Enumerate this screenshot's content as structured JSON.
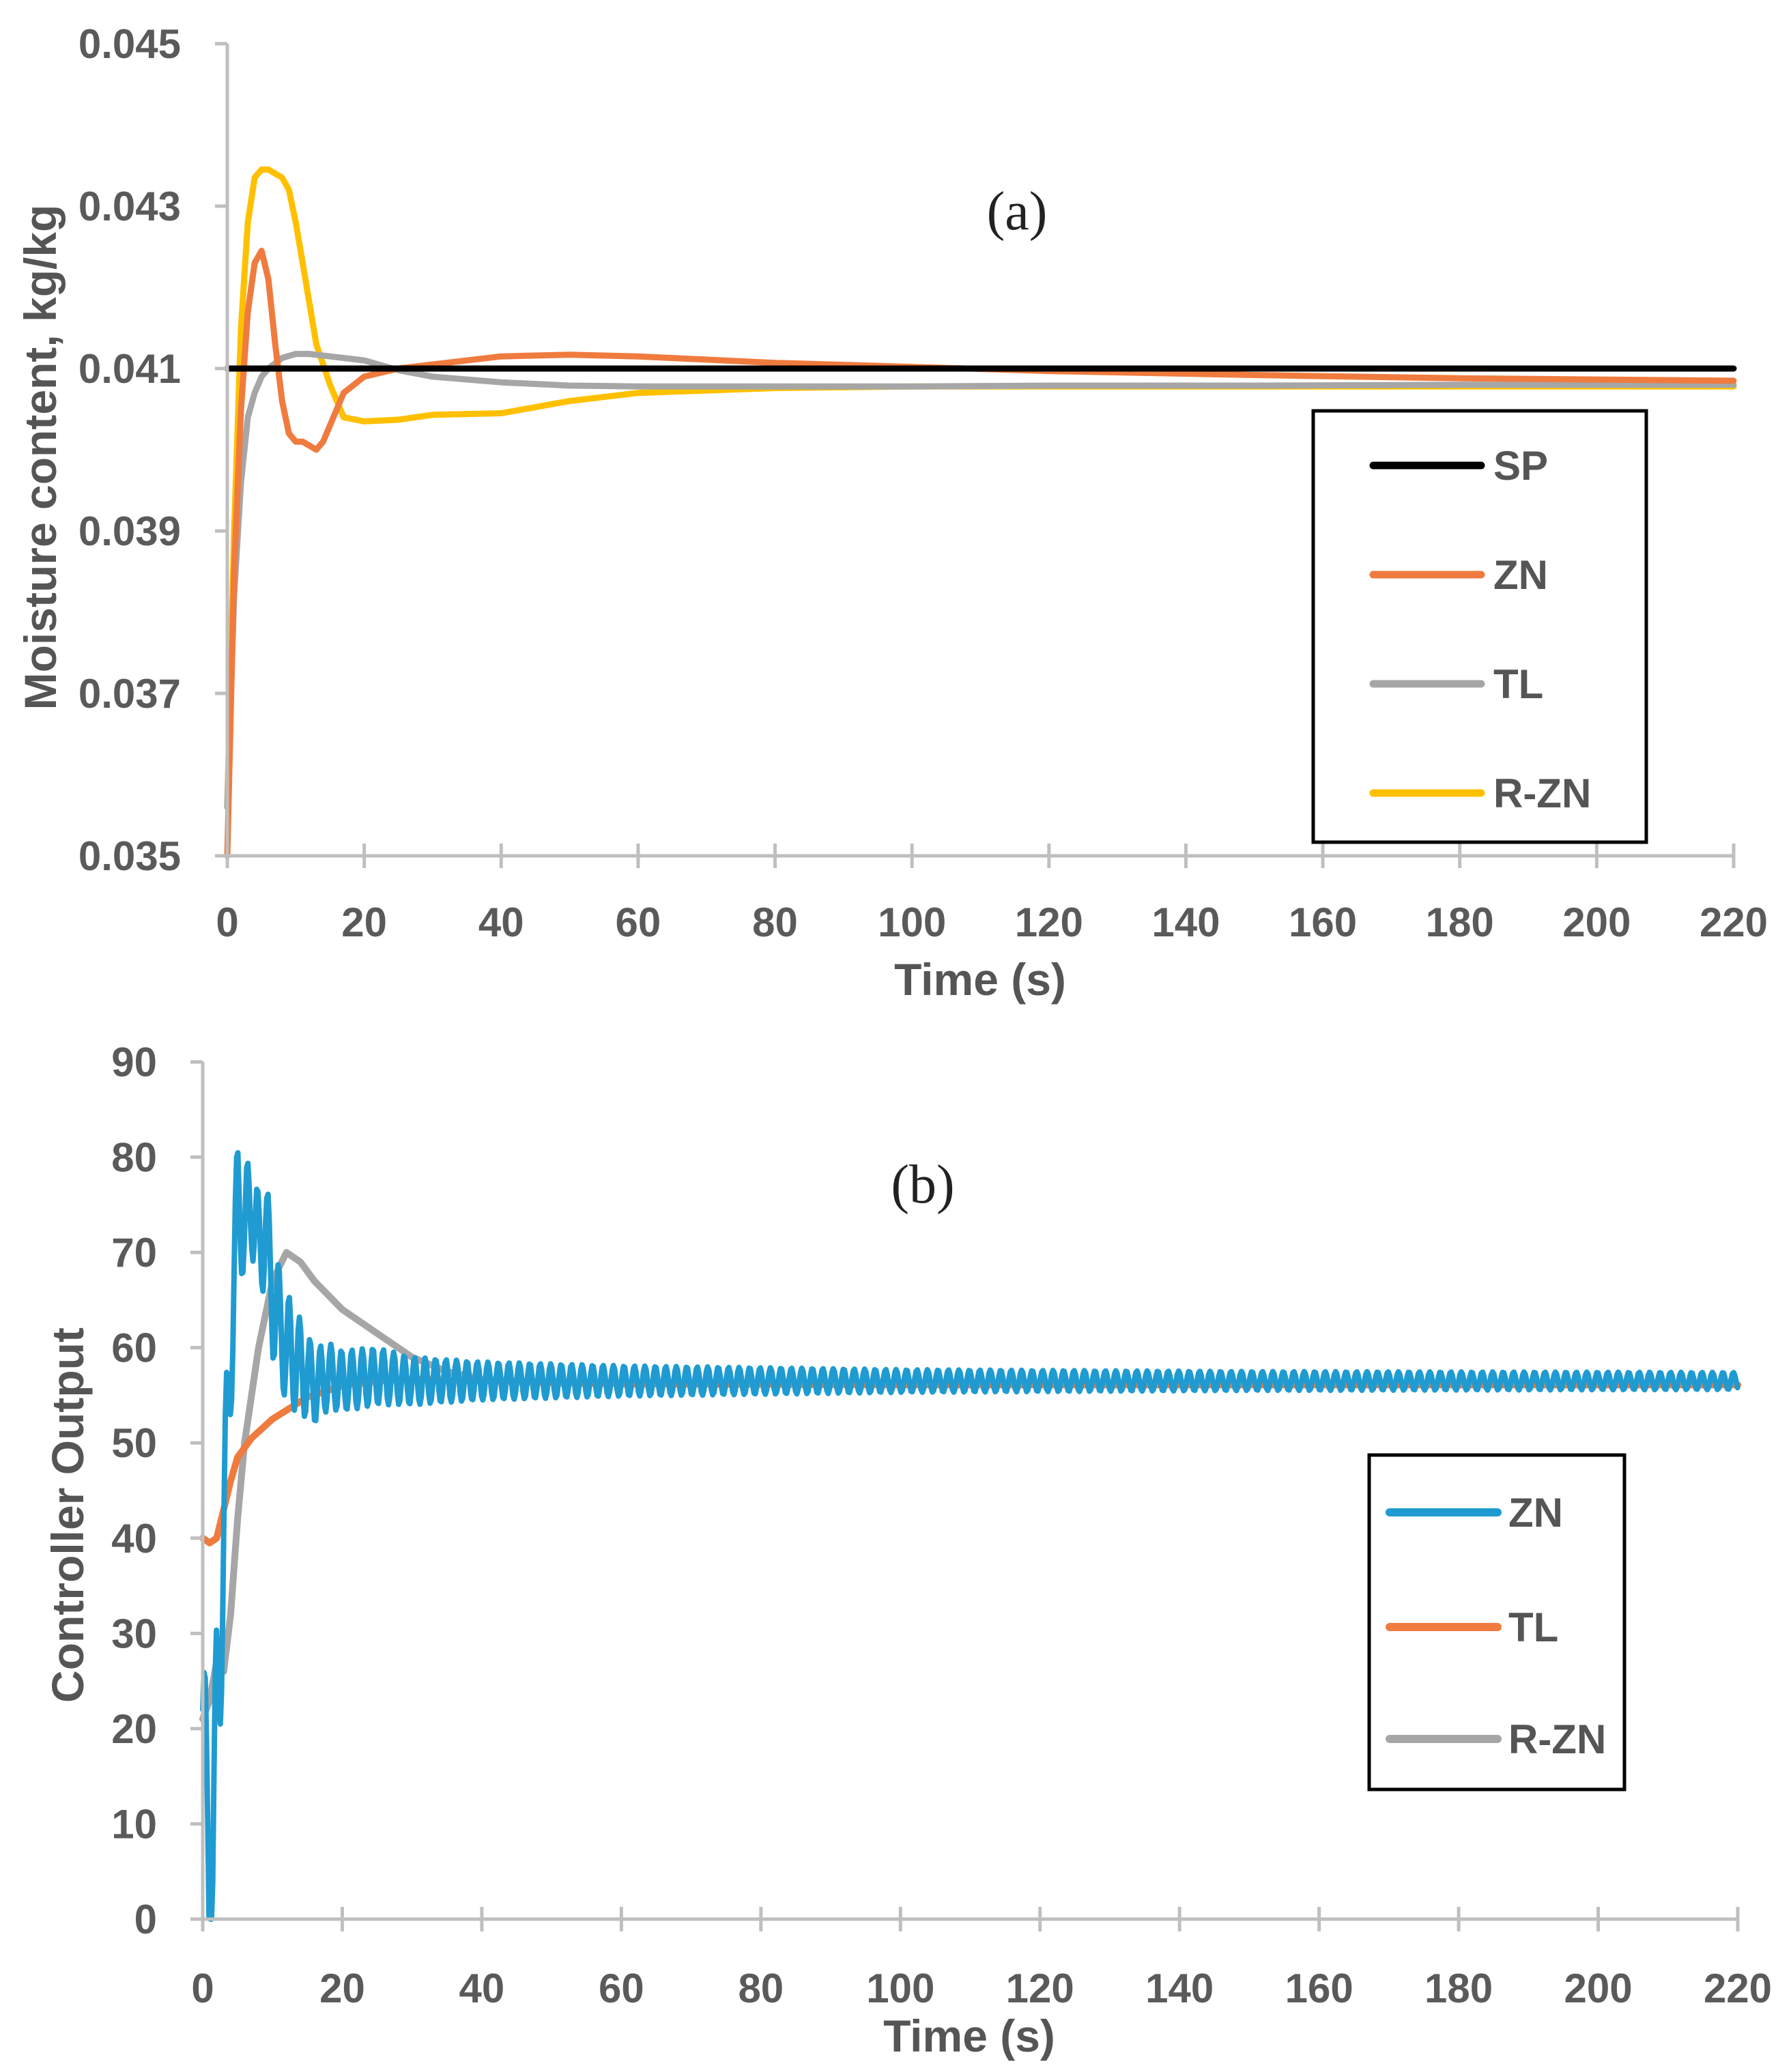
{
  "chart_data": [
    {
      "type": "line",
      "panel_label": "(a)",
      "xlabel": "Time (s)",
      "ylabel": "Moisture content, kg/kg",
      "xlim": [
        0,
        220
      ],
      "ylim": [
        0.035,
        0.045
      ],
      "xticks": [
        0,
        20,
        40,
        60,
        80,
        100,
        120,
        140,
        160,
        180,
        200,
        220
      ],
      "yticks": [
        0.035,
        0.037,
        0.039,
        0.041,
        0.043,
        0.045
      ],
      "ytick_labels": [
        "0.035",
        "0.037",
        "0.039",
        "0.041",
        "0.043",
        "0.045"
      ],
      "grid": false,
      "legend_position": "right",
      "series": [
        {
          "name": "SP",
          "color": "#000000",
          "x": [
            0,
            220
          ],
          "y": [
            0.041,
            0.041
          ]
        },
        {
          "name": "ZN",
          "color": "#f07b3f",
          "x": [
            0,
            1,
            2,
            3,
            4,
            5,
            6,
            7,
            8,
            9,
            10,
            11,
            12,
            13,
            14,
            15,
            17,
            20,
            25,
            30,
            40,
            50,
            60,
            80,
            100,
            120,
            150,
            180,
            220
          ],
          "y": [
            0.035,
            0.0385,
            0.0405,
            0.0417,
            0.0423,
            0.04245,
            0.0421,
            0.0413,
            0.0406,
            0.0402,
            0.0401,
            0.0401,
            0.04005,
            0.04,
            0.0401,
            0.0403,
            0.0407,
            0.0409,
            0.041,
            0.04105,
            0.04115,
            0.04117,
            0.04115,
            0.04107,
            0.04102,
            0.04097,
            0.04092,
            0.04088,
            0.04085
          ]
        },
        {
          "name": "TL",
          "color": "#a6a6a6",
          "x": [
            0,
            1,
            2,
            3,
            4,
            5,
            6,
            8,
            10,
            12,
            15,
            20,
            25,
            30,
            40,
            50,
            60,
            80,
            100,
            120,
            150,
            180,
            220
          ],
          "y": [
            0.0356,
            0.0382,
            0.0396,
            0.0404,
            0.0407,
            0.0409,
            0.041,
            0.04113,
            0.04118,
            0.04118,
            0.04115,
            0.0411,
            0.04098,
            0.0409,
            0.04083,
            0.04079,
            0.04078,
            0.04078,
            0.04078,
            0.04079,
            0.04079,
            0.0408,
            0.0408
          ]
        },
        {
          "name": "R-ZN",
          "color": "#ffc000",
          "x": [
            0,
            1,
            2,
            3,
            4,
            5,
            6,
            7,
            8,
            9,
            10,
            11,
            12,
            13,
            15,
            17,
            20,
            25,
            30,
            40,
            50,
            60,
            80,
            100,
            120,
            150,
            180,
            220
          ],
          "y": [
            0.0356,
            0.039,
            0.0415,
            0.0428,
            0.04335,
            0.04345,
            0.04345,
            0.0434,
            0.04335,
            0.0432,
            0.0428,
            0.0423,
            0.0418,
            0.0413,
            0.0408,
            0.0404,
            0.04035,
            0.04037,
            0.04043,
            0.04045,
            0.0406,
            0.0407,
            0.04076,
            0.04078,
            0.04078,
            0.04078,
            0.04078,
            0.04078
          ]
        }
      ]
    },
    {
      "type": "line",
      "panel_label": "(b)",
      "xlabel": "Time (s)",
      "ylabel": "Controller Output",
      "xlim": [
        0,
        220
      ],
      "ylim": [
        0,
        90
      ],
      "xticks": [
        0,
        20,
        40,
        60,
        80,
        100,
        120,
        140,
        160,
        180,
        200,
        220
      ],
      "yticks": [
        0,
        10,
        20,
        30,
        40,
        50,
        60,
        70,
        80,
        90
      ],
      "ytick_labels": [
        "0",
        "10",
        "20",
        "30",
        "40",
        "50",
        "60",
        "70",
        "80",
        "90"
      ],
      "grid": false,
      "legend_position": "right",
      "series": [
        {
          "name": "ZN",
          "color": "#1f9bd1",
          "x": [
            0,
            0.5,
            1,
            1.5,
            2,
            3,
            4,
            5,
            6,
            7,
            8,
            9,
            10,
            12,
            14,
            16,
            18,
            20,
            25,
            30,
            40,
            60,
            100,
            150,
            220
          ],
          "y": [
            22,
            10,
            6.5,
            7,
            20,
            40,
            60,
            76,
            72,
            76,
            70,
            73,
            65,
            60,
            58,
            56,
            57,
            56.5,
            57,
            56.5,
            56.5,
            56.5,
            56.5,
            56.5,
            56.5
          ],
          "oscillation_amplitude": [
            12,
            12,
            12,
            12,
            12,
            10,
            8,
            6,
            6,
            6,
            6,
            6,
            6,
            6,
            5,
            4,
            3.5,
            3.2,
            3,
            2.5,
            2,
            1.6,
            1.2,
            1,
            0.9
          ]
        },
        {
          "name": "TL",
          "color": "#f07b3f",
          "x": [
            0,
            1,
            2,
            3,
            4,
            5,
            7,
            10,
            15,
            20,
            25,
            30,
            40,
            60,
            100,
            150,
            220
          ],
          "y": [
            40,
            39.5,
            40,
            43,
            46,
            48.5,
            50.5,
            52.5,
            54.8,
            56,
            56.5,
            56.7,
            56.5,
            56.2,
            56.1,
            56.1,
            56.1
          ]
        },
        {
          "name": "R-ZN",
          "color": "#a6a6a6",
          "x": [
            0,
            1,
            2,
            3,
            4,
            5,
            6,
            8,
            10,
            12,
            14,
            16,
            20,
            25,
            30,
            35,
            40,
            50,
            60,
            100,
            150,
            220
          ],
          "y": [
            21,
            23,
            27,
            26,
            32,
            42,
            50,
            60,
            67,
            70,
            69,
            67,
            64,
            61.5,
            59,
            57.5,
            56.7,
            56.3,
            56.2,
            56.1,
            56.1,
            56.1
          ]
        }
      ]
    }
  ]
}
